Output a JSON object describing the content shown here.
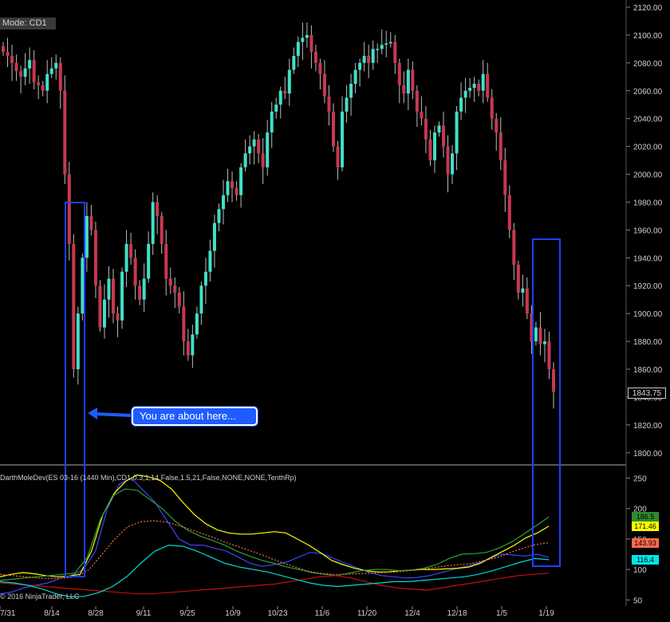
{
  "mode_label": "Mode: CD1",
  "indicator_label": "DarthMoleDev(ES 03-16 (1440 Min),CD1,0.3,1,14,False,1.5,21,False,NONE,NONE,TenthRp)",
  "copyright": "© 2016 NinjaTrader, LLC",
  "annotation": "You are about here...",
  "current_price": "1843.75",
  "indicator_badges": [
    {
      "text": "186.5",
      "bg": "#2e8b2e",
      "fg": "#000000"
    },
    {
      "text": "171.46",
      "bg": "#ffff00",
      "fg": "#000000"
    },
    {
      "text": "143.93",
      "bg": "#ff6a4d",
      "fg": "#000000"
    },
    {
      "text": "116.4",
      "bg": "#00e5e5",
      "fg": "#000000"
    }
  ],
  "colors": {
    "background": "#000000",
    "up_candle": "#40e0c8",
    "down_candle": "#c83850",
    "highlight_box": "#1f3fff",
    "divider": "#b0b0b0"
  },
  "chart_data": [
    {
      "type": "candlestick",
      "title": "",
      "x_tick_labels": [
        "7/31",
        "8/14",
        "8/28",
        "9/11",
        "9/25",
        "10/9",
        "10/23",
        "11/6",
        "11/20",
        "12/4",
        "12/18",
        "1/5",
        "1/19"
      ],
      "y_tick_labels": [
        "2120.00",
        "2100.00",
        "2080.00",
        "2060.00",
        "2040.00",
        "2020.00",
        "2000.00",
        "1980.00",
        "1960.00",
        "1940.00",
        "1920.00",
        "1900.00",
        "1880.00",
        "1860.00",
        "1840.00",
        "1820.00",
        "1800.00"
      ],
      "ylim": [
        1793,
        2124
      ],
      "grid": false,
      "last_price": 1843.75,
      "close_series": [
        2088,
        2085,
        2080,
        2074,
        2070,
        2076,
        2082,
        2066,
        2064,
        2060,
        2072,
        2076,
        2080,
        2060,
        2000,
        1950,
        1860,
        1900,
        1940,
        1970,
        1960,
        1920,
        1890,
        1910,
        1925,
        1900,
        1895,
        1930,
        1950,
        1940,
        1920,
        1910,
        1925,
        1950,
        1980,
        1970,
        1950,
        1925,
        1920,
        1915,
        1905,
        1880,
        1870,
        1885,
        1900,
        1920,
        1930,
        1945,
        1965,
        1975,
        1985,
        1995,
        1990,
        1985,
        2005,
        2015,
        2020,
        2025,
        2015,
        2005,
        2030,
        2045,
        2050,
        2060,
        2058,
        2075,
        2085,
        2095,
        2098,
        2100,
        2088,
        2080,
        2072,
        2056,
        2045,
        2020,
        2005,
        2045,
        2055,
        2065,
        2075,
        2080,
        2085,
        2080,
        2090,
        2090,
        2093,
        2094,
        2095,
        2080,
        2064,
        2058,
        2075,
        2060,
        2045,
        2040,
        2025,
        2010,
        2030,
        2035,
        2020,
        2000,
        2015,
        2045,
        2055,
        2060,
        2062,
        2065,
        2060,
        2072,
        2055,
        2040,
        2030,
        2010,
        1985,
        1960,
        1935,
        1915,
        1918,
        1900,
        1880,
        1890,
        1878,
        1880,
        1860,
        1843.75
      ]
    },
    {
      "type": "line",
      "title": "",
      "x_tick_labels": [
        "7/31",
        "8/14",
        "8/28",
        "9/11",
        "9/25",
        "10/9",
        "10/23",
        "11/6",
        "11/20",
        "12/4",
        "12/18",
        "1/5",
        "1/19"
      ],
      "y_tick_labels": [
        "250",
        "200",
        "150",
        "100",
        "50"
      ],
      "ylim": [
        40,
        265
      ],
      "series": [
        {
          "color": "#3a46ff",
          "values": [
            60,
            63,
            70,
            74,
            78,
            85,
            90,
            100,
            130,
            200,
            240,
            250,
            230,
            210,
            180,
            150,
            140,
            140,
            135,
            130,
            120,
            110,
            105,
            108,
            112,
            120,
            128,
            126,
            118,
            110,
            102,
            95,
            90,
            88,
            86,
            87,
            90,
            95,
            100,
            105,
            110,
            118,
            125,
            124,
            122,
            125,
            120
          ]
        },
        {
          "color": "#ffff00",
          "values": [
            88,
            92,
            95,
            93,
            90,
            88,
            89,
            92,
            130,
            190,
            225,
            245,
            255,
            252,
            246,
            232,
            210,
            190,
            175,
            165,
            160,
            158,
            158,
            160,
            162,
            160,
            150,
            140,
            128,
            115,
            108,
            102,
            98,
            96,
            96,
            98,
            99,
            100,
            100,
            101,
            102,
            104,
            110,
            120,
            130,
            140,
            152,
            160,
            171
          ]
        },
        {
          "color": "#2aa52a",
          "values": [
            82,
            84,
            86,
            88,
            90,
            92,
            94,
            120,
            180,
            220,
            232,
            230,
            215,
            200,
            180,
            165,
            155,
            148,
            140,
            130,
            122,
            115,
            110,
            104,
            100,
            95,
            92,
            90,
            94,
            98,
            100,
            100,
            98,
            99,
            102,
            108,
            118,
            125,
            126,
            128,
            135,
            145,
            158,
            172,
            186
          ]
        },
        {
          "color": "#ff6a4d",
          "values": [
            92,
            90,
            88,
            86,
            85,
            86,
            88,
            100,
            125,
            150,
            170,
            178,
            180,
            178,
            172,
            165,
            158,
            150,
            142,
            135,
            128,
            120,
            112,
            105,
            98,
            94,
            92,
            92,
            93,
            94,
            95,
            96,
            98,
            100,
            103,
            106,
            108,
            110,
            115,
            120,
            128,
            135,
            141,
            144
          ]
        },
        {
          "color": "#c01010",
          "values": [
            78,
            76,
            74,
            72,
            70,
            68,
            66,
            64,
            62,
            60,
            60,
            62,
            64,
            66,
            68,
            70,
            72,
            74,
            76,
            80,
            84,
            88,
            90,
            86,
            80,
            74,
            70,
            68,
            66,
            70,
            74,
            78,
            82,
            86,
            90,
            92,
            94
          ]
        },
        {
          "color": "#00d8d8",
          "values": [
            80,
            78,
            74,
            68,
            60,
            55,
            56,
            62,
            72,
            88,
            110,
            130,
            140,
            138,
            130,
            120,
            110,
            104,
            100,
            96,
            90,
            84,
            78,
            74,
            72,
            74,
            76,
            78,
            80,
            80,
            82,
            84,
            86,
            88,
            92,
            98,
            105,
            112,
            118,
            116
          ]
        }
      ]
    }
  ]
}
